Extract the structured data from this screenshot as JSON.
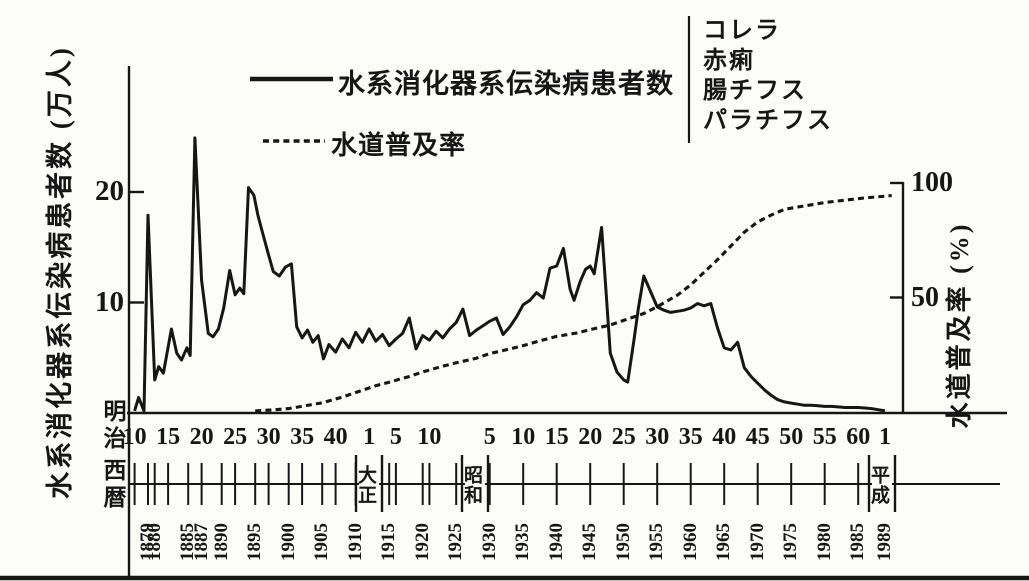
{
  "figure": {
    "background": "#fcfcf9",
    "ink": "#161616"
  },
  "legend": {
    "series1_label": "水系消化器系伝染病患者数",
    "series2_label": "水道普及率",
    "diseases": [
      "コレラ",
      "赤痢",
      "腸チフス",
      "パラチフス"
    ]
  },
  "x_axis": {
    "era_column_top": "明治",
    "era_column_bottom": "西暦",
    "era_year_labels": [
      {
        "era": "明治",
        "label": "10",
        "year": 1877
      },
      {
        "era": "明治",
        "label": "15",
        "year": 1882
      },
      {
        "era": "明治",
        "label": "20",
        "year": 1887
      },
      {
        "era": "明治",
        "label": "25",
        "year": 1892
      },
      {
        "era": "明治",
        "label": "30",
        "year": 1897
      },
      {
        "era": "明治",
        "label": "35",
        "year": 1902
      },
      {
        "era": "明治",
        "label": "40",
        "year": 1907
      },
      {
        "era": "大正",
        "label": "1",
        "year": 1912
      },
      {
        "era": "大正",
        "label": "5",
        "year": 1916
      },
      {
        "era": "大正",
        "label": "10",
        "year": 1921
      },
      {
        "era": "昭和",
        "label": "5",
        "year": 1930
      },
      {
        "era": "昭和",
        "label": "10",
        "year": 1935
      },
      {
        "era": "昭和",
        "label": "15",
        "year": 1940
      },
      {
        "era": "昭和",
        "label": "20",
        "year": 1945
      },
      {
        "era": "昭和",
        "label": "25",
        "year": 1950
      },
      {
        "era": "昭和",
        "label": "30",
        "year": 1955
      },
      {
        "era": "昭和",
        "label": "35",
        "year": 1960
      },
      {
        "era": "昭和",
        "label": "40",
        "year": 1965
      },
      {
        "era": "昭和",
        "label": "45",
        "year": 1970
      },
      {
        "era": "昭和",
        "label": "50",
        "year": 1975
      },
      {
        "era": "昭和",
        "label": "55",
        "year": 1980
      },
      {
        "era": "昭和",
        "label": "60",
        "year": 1985
      },
      {
        "era": "平成",
        "label": "1",
        "year": 1989
      }
    ],
    "era_names": [
      {
        "name": "大正",
        "start_year": 1912
      },
      {
        "name": "昭和",
        "start_year": 1926
      },
      {
        "name": "平成",
        "start_year": 1989
      }
    ],
    "western_year_labels": [
      1879,
      1880,
      1885,
      1887,
      1890,
      1895,
      1900,
      1905,
      1910,
      1915,
      1920,
      1925,
      1930,
      1935,
      1940,
      1945,
      1950,
      1955,
      1960,
      1965,
      1970,
      1975,
      1980,
      1985,
      1989
    ]
  },
  "chart_data": {
    "type": "line",
    "title": "",
    "grid": false,
    "legend_position": "top",
    "x_range": [
      1877,
      1990
    ],
    "left_axis": {
      "label": "水系消化器系伝染病患者数 (万人)",
      "unit": "万人",
      "ticks": [
        10,
        20
      ],
      "range": [
        0,
        25
      ]
    },
    "right_axis": {
      "label": "水道普及率 (%)",
      "unit": "%",
      "ticks": [
        50,
        100
      ],
      "range": [
        0,
        100
      ]
    },
    "series": [
      {
        "name": "水系消化器系伝染病患者数",
        "style": "solid",
        "axis": "left",
        "includes": [
          "コレラ",
          "赤痢",
          "腸チフス",
          "パラチフス"
        ],
        "points": [
          [
            1877,
            0.2
          ],
          [
            1877.6,
            1.4
          ],
          [
            1878.4,
            0.2
          ],
          [
            1879,
            17.9
          ],
          [
            1880,
            3.0
          ],
          [
            1880.6,
            4.2
          ],
          [
            1881.3,
            3.6
          ],
          [
            1882.5,
            7.6
          ],
          [
            1883.3,
            5.4
          ],
          [
            1884,
            4.8
          ],
          [
            1884.8,
            5.9
          ],
          [
            1885.3,
            5.2
          ],
          [
            1886,
            24.9
          ],
          [
            1887,
            12.0
          ],
          [
            1888,
            7.2
          ],
          [
            1888.7,
            6.9
          ],
          [
            1889.5,
            7.6
          ],
          [
            1890.3,
            9.5
          ],
          [
            1891.2,
            12.9
          ],
          [
            1892,
            10.7
          ],
          [
            1892.7,
            11.3
          ],
          [
            1893.3,
            10.8
          ],
          [
            1894,
            20.4
          ],
          [
            1894.8,
            19.7
          ],
          [
            1895.4,
            17.9
          ],
          [
            1896.2,
            16.1
          ],
          [
            1897,
            14.3
          ],
          [
            1897.7,
            12.8
          ],
          [
            1898.6,
            12.4
          ],
          [
            1899.5,
            13.2
          ],
          [
            1900.4,
            13.5
          ],
          [
            1901.2,
            7.8
          ],
          [
            1902,
            6.8
          ],
          [
            1902.8,
            7.5
          ],
          [
            1903.6,
            6.4
          ],
          [
            1904.4,
            7.0
          ],
          [
            1905.2,
            4.9
          ],
          [
            1906,
            6.2
          ],
          [
            1907,
            5.5
          ],
          [
            1908,
            6.7
          ],
          [
            1909,
            5.9
          ],
          [
            1910,
            7.3
          ],
          [
            1911,
            6.4
          ],
          [
            1912,
            7.6
          ],
          [
            1913,
            6.5
          ],
          [
            1914,
            7.1
          ],
          [
            1915,
            6.1
          ],
          [
            1916,
            6.7
          ],
          [
            1917,
            7.2
          ],
          [
            1918,
            8.6
          ],
          [
            1919,
            5.8
          ],
          [
            1920,
            7.0
          ],
          [
            1921,
            6.6
          ],
          [
            1922,
            7.4
          ],
          [
            1923,
            6.8
          ],
          [
            1924,
            7.6
          ],
          [
            1925,
            8.2
          ],
          [
            1926,
            9.4
          ],
          [
            1927,
            7.0
          ],
          [
            1928,
            7.5
          ],
          [
            1929,
            7.9
          ],
          [
            1930,
            8.3
          ],
          [
            1931,
            8.6
          ],
          [
            1932,
            7.1
          ],
          [
            1933,
            7.8
          ],
          [
            1934,
            8.7
          ],
          [
            1935,
            9.8
          ],
          [
            1936,
            10.2
          ],
          [
            1937,
            10.9
          ],
          [
            1938,
            10.4
          ],
          [
            1939,
            13.1
          ],
          [
            1940,
            13.3
          ],
          [
            1941,
            14.9
          ],
          [
            1942,
            11.2
          ],
          [
            1942.6,
            10.2
          ],
          [
            1943.5,
            11.9
          ],
          [
            1944.3,
            13.0
          ],
          [
            1945,
            13.3
          ],
          [
            1945.6,
            12.6
          ],
          [
            1946.7,
            16.8
          ],
          [
            1948,
            5.4
          ],
          [
            1949,
            3.7
          ],
          [
            1950,
            3.0
          ],
          [
            1950.6,
            2.8
          ],
          [
            1951.5,
            6.5
          ],
          [
            1952.2,
            9.5
          ],
          [
            1953,
            12.4
          ],
          [
            1954,
            11.0
          ],
          [
            1955,
            9.6
          ],
          [
            1956,
            9.3
          ],
          [
            1957,
            9.1
          ],
          [
            1958,
            9.2
          ],
          [
            1959,
            9.3
          ],
          [
            1960,
            9.5
          ],
          [
            1961,
            9.9
          ],
          [
            1962,
            9.7
          ],
          [
            1963,
            9.9
          ],
          [
            1964,
            7.7
          ],
          [
            1965,
            5.9
          ],
          [
            1966,
            5.7
          ],
          [
            1967,
            6.4
          ],
          [
            1968,
            4.1
          ],
          [
            1969,
            3.3
          ],
          [
            1970,
            2.7
          ],
          [
            1971,
            2.1
          ],
          [
            1972,
            1.6
          ],
          [
            1973,
            1.2
          ],
          [
            1974,
            1.0
          ],
          [
            1975,
            0.9
          ],
          [
            1976,
            0.8
          ],
          [
            1977,
            0.7
          ],
          [
            1978,
            0.7
          ],
          [
            1979,
            0.65
          ],
          [
            1980,
            0.6
          ],
          [
            1981,
            0.6
          ],
          [
            1982,
            0.55
          ],
          [
            1983,
            0.5
          ],
          [
            1984,
            0.5
          ],
          [
            1985,
            0.5
          ],
          [
            1986,
            0.45
          ],
          [
            1987,
            0.4
          ],
          [
            1988,
            0.3
          ],
          [
            1989,
            0.2
          ]
        ]
      },
      {
        "name": "水道普及率",
        "style": "dashed",
        "axis": "right",
        "points": [
          [
            1895,
            0.5
          ],
          [
            1898,
            1
          ],
          [
            1900,
            1.5
          ],
          [
            1902,
            2.5
          ],
          [
            1905,
            4
          ],
          [
            1908,
            6.5
          ],
          [
            1910,
            8.5
          ],
          [
            1913,
            11.5
          ],
          [
            1915,
            13
          ],
          [
            1918,
            15.5
          ],
          [
            1920,
            17.5
          ],
          [
            1923,
            20
          ],
          [
            1925,
            21.5
          ],
          [
            1928,
            23.5
          ],
          [
            1930,
            25.5
          ],
          [
            1933,
            27.5
          ],
          [
            1935,
            29
          ],
          [
            1938,
            31.5
          ],
          [
            1940,
            33
          ],
          [
            1943,
            34.5
          ],
          [
            1945,
            36
          ],
          [
            1948,
            38
          ],
          [
            1950,
            40
          ],
          [
            1953,
            43
          ],
          [
            1955,
            46
          ],
          [
            1958,
            51
          ],
          [
            1960,
            55.5
          ],
          [
            1962,
            61
          ],
          [
            1964,
            66.5
          ],
          [
            1966,
            72.5
          ],
          [
            1968,
            78.5
          ],
          [
            1970,
            83
          ],
          [
            1972,
            86
          ],
          [
            1974,
            88.5
          ],
          [
            1976,
            89.5
          ],
          [
            1978,
            90.5
          ],
          [
            1980,
            91.5
          ],
          [
            1983,
            92.5
          ],
          [
            1986,
            93.5
          ],
          [
            1990,
            94.5
          ]
        ]
      }
    ]
  }
}
